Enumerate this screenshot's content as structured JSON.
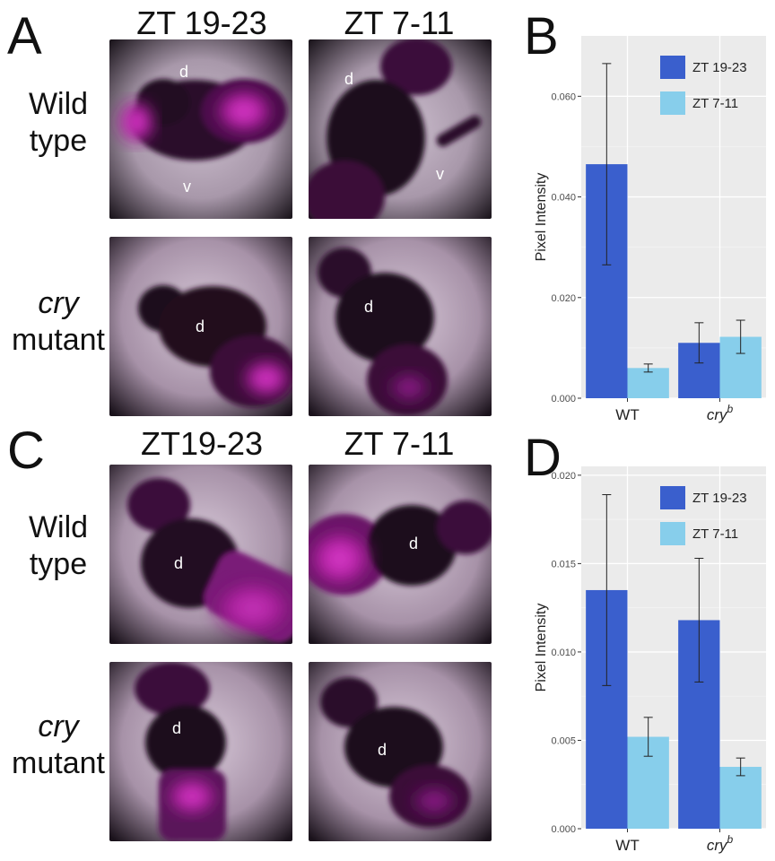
{
  "figure": {
    "panels": {
      "A": "A",
      "B": "B",
      "C": "C",
      "D": "D"
    },
    "top": {
      "columns": [
        "ZT 19-23",
        "ZT 7-11"
      ],
      "rows": [
        {
          "line1": "Wild",
          "line2": "type",
          "italic": false
        },
        {
          "line1": "cry",
          "line2": "mutant",
          "italic": true
        }
      ],
      "photo_labels": {
        "wt_zt19": [
          "d",
          "v"
        ],
        "wt_zt7": [
          "d",
          "v"
        ],
        "cry_zt19": [
          "d"
        ],
        "cry_zt7": [
          "d"
        ]
      }
    },
    "bottom": {
      "columns": [
        "ZT19-23",
        "ZT 7-11"
      ],
      "rows": [
        {
          "line1": "Wild",
          "line2": "type",
          "italic": false
        },
        {
          "line1": "cry",
          "line2": "mutant",
          "italic": true
        }
      ],
      "photo_labels": {
        "wt_zt19": [
          "d"
        ],
        "wt_zt7": [
          "d"
        ],
        "cry_zt19": [
          "d"
        ],
        "cry_zt7": [
          "d"
        ]
      }
    }
  },
  "colors": {
    "series1": "#3a5fcd",
    "series2": "#87ceeb",
    "panel_bg": "#ebebeb",
    "grid": "#ffffff",
    "magenta": "#c020b0"
  },
  "chart_data": [
    {
      "type": "bar",
      "panel": "B",
      "title": "",
      "xlabel": "",
      "ylabel": "Pixel Intensity",
      "categories": [
        "WT",
        "cry"
      ],
      "category_superscripts": [
        "",
        "b"
      ],
      "category_italic": [
        false,
        true
      ],
      "ylim": [
        0,
        0.072
      ],
      "yticks": [
        0.0,
        0.02,
        0.04,
        0.06
      ],
      "ytick_labels": [
        "0.000",
        "0.020",
        "0.040",
        "0.060"
      ],
      "series": [
        {
          "name": "ZT 19-23",
          "values": [
            0.0465,
            0.011
          ],
          "error": [
            0.02,
            0.004
          ]
        },
        {
          "name": "ZT 7-11",
          "values": [
            0.006,
            0.0122
          ],
          "error": [
            0.0008,
            0.0033
          ]
        }
      ],
      "grid": true,
      "legend": "top-right"
    },
    {
      "type": "bar",
      "panel": "D",
      "title": "",
      "xlabel": "",
      "ylabel": "Pixel Intensity",
      "categories": [
        "WT",
        "cry"
      ],
      "category_superscripts": [
        "",
        "b"
      ],
      "category_italic": [
        false,
        true
      ],
      "ylim": [
        0,
        0.0205
      ],
      "yticks": [
        0.0,
        0.005,
        0.01,
        0.015,
        0.02
      ],
      "ytick_labels": [
        "0.000",
        "0.005",
        "0.010",
        "0.015",
        "0.020"
      ],
      "series": [
        {
          "name": "ZT 19-23",
          "values": [
            0.0135,
            0.0118
          ],
          "error": [
            0.0054,
            0.0035
          ]
        },
        {
          "name": "ZT 7-11",
          "values": [
            0.0052,
            0.0035
          ],
          "error": [
            0.0011,
            0.0005
          ]
        }
      ],
      "grid": true,
      "legend": "top-right"
    }
  ]
}
